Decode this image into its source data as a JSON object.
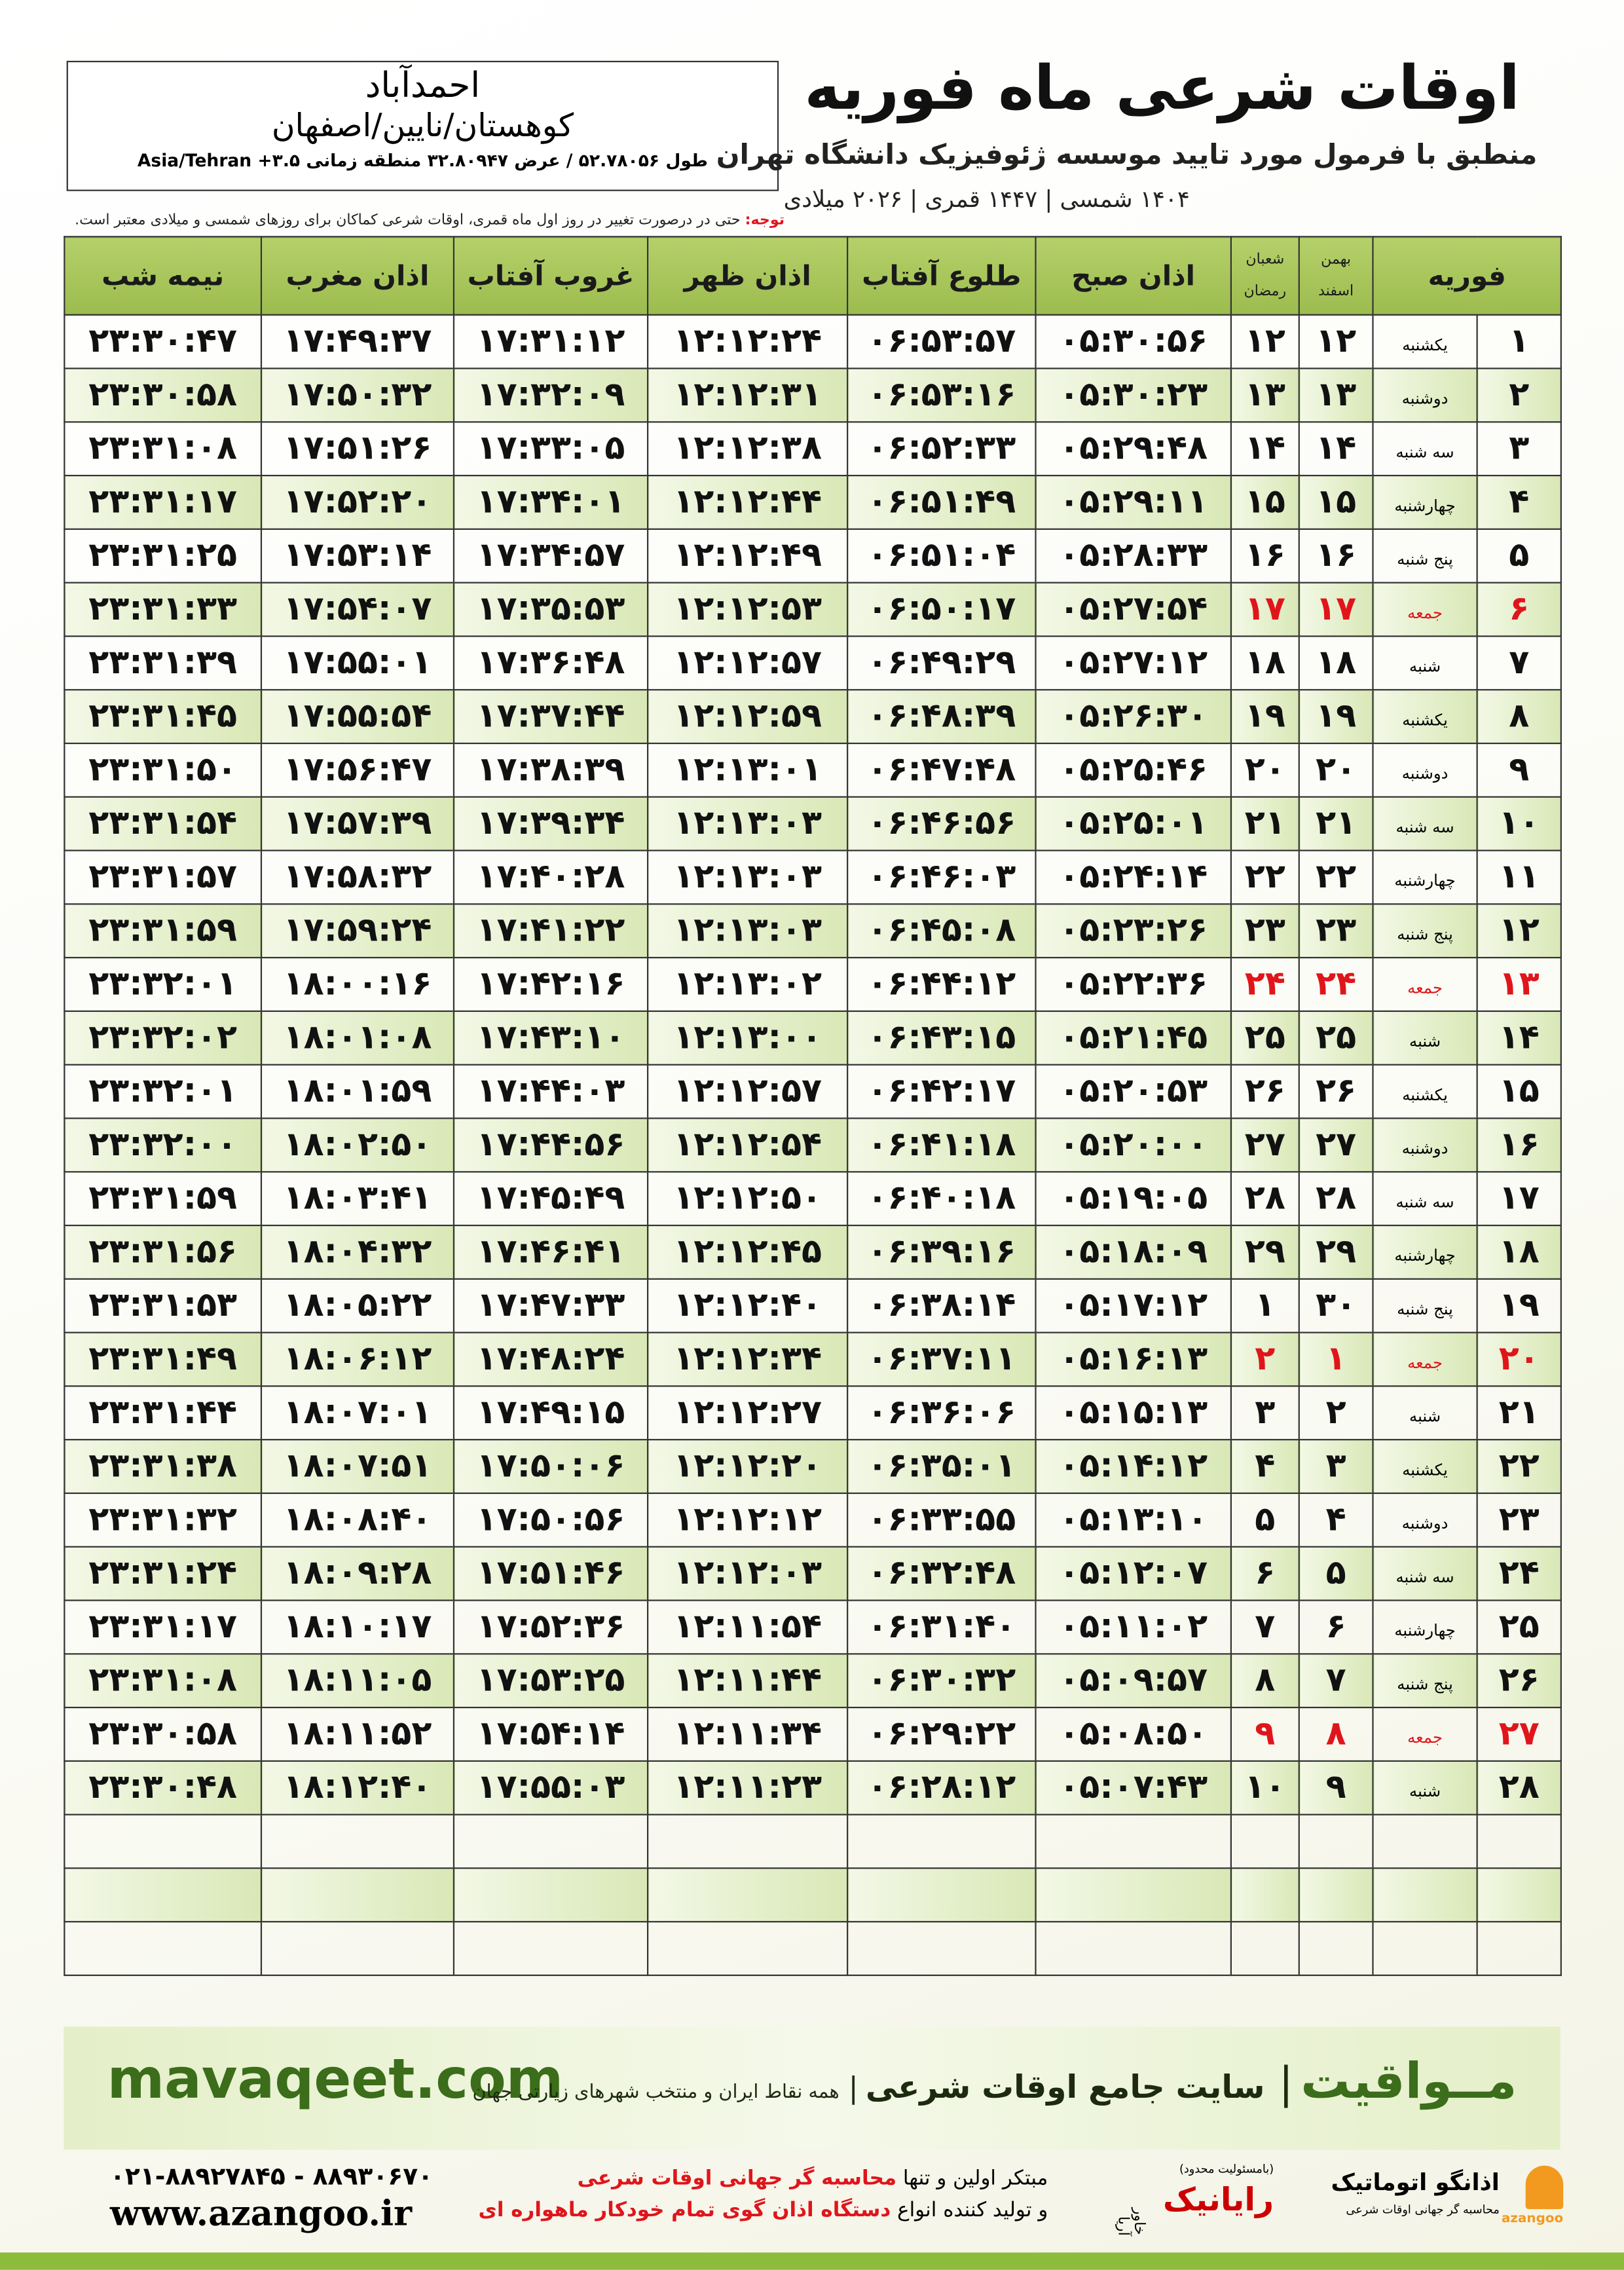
{
  "header": {
    "title": "اوقات شرعی ماه فوریه",
    "subtitle": "منطبق با فرمول مورد تایید موسسه ژئوفیزیک دانشگاه تهران",
    "dates": "۱۴۰۴ شمسی | ۱۴۴۷ قمری | ۲۰۲۶ میلادی"
  },
  "location": {
    "city": "احمدآباد",
    "region": "کوهستان/نایین/اصفهان",
    "coords": "طول ۵۲.۷۸۰۵۶ / عرض ۳۲.۸۰۹۴۷ منطقه زمانی ۳.۵+ Asia/Tehran"
  },
  "note": {
    "label": "توجه:",
    "text": "حتی در درصورت تغییر در روز اول ماه قمری، اوقات شرعی کماکان برای روزهای شمسی و میلادی معتبر است."
  },
  "table": {
    "columns": [
      "فوریه",
      [
        "بهمن",
        "اسفند"
      ],
      [
        "شعبان",
        "رمضان"
      ],
      "اذان صبح",
      "طلوع آفتاب",
      "اذان ظهر",
      "غروب آفتاب",
      "اذان مغرب",
      "نیمه شب"
    ],
    "rows": [
      [
        "۱",
        "یکشنبه",
        "۱۲",
        "۱۲",
        "۰۵:۳۰:۵۶",
        "۰۶:۵۳:۵۷",
        "۱۲:۱۲:۲۴",
        "۱۷:۳۱:۱۲",
        "۱۷:۴۹:۳۷",
        "۲۳:۳۰:۴۷"
      ],
      [
        "۲",
        "دوشنبه",
        "۱۳",
        "۱۳",
        "۰۵:۳۰:۲۳",
        "۰۶:۵۳:۱۶",
        "۱۲:۱۲:۳۱",
        "۱۷:۳۲:۰۹",
        "۱۷:۵۰:۳۲",
        "۲۳:۳۰:۵۸"
      ],
      [
        "۳",
        "سه شنبه",
        "۱۴",
        "۱۴",
        "۰۵:۲۹:۴۸",
        "۰۶:۵۲:۳۳",
        "۱۲:۱۲:۳۸",
        "۱۷:۳۳:۰۵",
        "۱۷:۵۱:۲۶",
        "۲۳:۳۱:۰۸"
      ],
      [
        "۴",
        "چهارشنبه",
        "۱۵",
        "۱۵",
        "۰۵:۲۹:۱۱",
        "۰۶:۵۱:۴۹",
        "۱۲:۱۲:۴۴",
        "۱۷:۳۴:۰۱",
        "۱۷:۵۲:۲۰",
        "۲۳:۳۱:۱۷"
      ],
      [
        "۵",
        "پنج شنبه",
        "۱۶",
        "۱۶",
        "۰۵:۲۸:۳۳",
        "۰۶:۵۱:۰۴",
        "۱۲:۱۲:۴۹",
        "۱۷:۳۴:۵۷",
        "۱۷:۵۳:۱۴",
        "۲۳:۳۱:۲۵"
      ],
      [
        "۶",
        "جمعه",
        "۱۷",
        "۱۷",
        "۰۵:۲۷:۵۴",
        "۰۶:۵۰:۱۷",
        "۱۲:۱۲:۵۳",
        "۱۷:۳۵:۵۳",
        "۱۷:۵۴:۰۷",
        "۲۳:۳۱:۳۳"
      ],
      [
        "۷",
        "شنبه",
        "۱۸",
        "۱۸",
        "۰۵:۲۷:۱۲",
        "۰۶:۴۹:۲۹",
        "۱۲:۱۲:۵۷",
        "۱۷:۳۶:۴۸",
        "۱۷:۵۵:۰۱",
        "۲۳:۳۱:۳۹"
      ],
      [
        "۸",
        "یکشنبه",
        "۱۹",
        "۱۹",
        "۰۵:۲۶:۳۰",
        "۰۶:۴۸:۳۹",
        "۱۲:۱۲:۵۹",
        "۱۷:۳۷:۴۴",
        "۱۷:۵۵:۵۴",
        "۲۳:۳۱:۴۵"
      ],
      [
        "۹",
        "دوشنبه",
        "۲۰",
        "۲۰",
        "۰۵:۲۵:۴۶",
        "۰۶:۴۷:۴۸",
        "۱۲:۱۳:۰۱",
        "۱۷:۳۸:۳۹",
        "۱۷:۵۶:۴۷",
        "۲۳:۳۱:۵۰"
      ],
      [
        "۱۰",
        "سه شنبه",
        "۲۱",
        "۲۱",
        "۰۵:۲۵:۰۱",
        "۰۶:۴۶:۵۶",
        "۱۲:۱۳:۰۳",
        "۱۷:۳۹:۳۴",
        "۱۷:۵۷:۳۹",
        "۲۳:۳۱:۵۴"
      ],
      [
        "۱۱",
        "چهارشنبه",
        "۲۲",
        "۲۲",
        "۰۵:۲۴:۱۴",
        "۰۶:۴۶:۰۳",
        "۱۲:۱۳:۰۳",
        "۱۷:۴۰:۲۸",
        "۱۷:۵۸:۳۲",
        "۲۳:۳۱:۵۷"
      ],
      [
        "۱۲",
        "پنج شنبه",
        "۲۳",
        "۲۳",
        "۰۵:۲۳:۲۶",
        "۰۶:۴۵:۰۸",
        "۱۲:۱۳:۰۳",
        "۱۷:۴۱:۲۲",
        "۱۷:۵۹:۲۴",
        "۲۳:۳۱:۵۹"
      ],
      [
        "۱۳",
        "جمعه",
        "۲۴",
        "۲۴",
        "۰۵:۲۲:۳۶",
        "۰۶:۴۴:۱۲",
        "۱۲:۱۳:۰۲",
        "۱۷:۴۲:۱۶",
        "۱۸:۰۰:۱۶",
        "۲۳:۳۲:۰۱"
      ],
      [
        "۱۴",
        "شنبه",
        "۲۵",
        "۲۵",
        "۰۵:۲۱:۴۵",
        "۰۶:۴۳:۱۵",
        "۱۲:۱۳:۰۰",
        "۱۷:۴۳:۱۰",
        "۱۸:۰۱:۰۸",
        "۲۳:۳۲:۰۲"
      ],
      [
        "۱۵",
        "یکشنبه",
        "۲۶",
        "۲۶",
        "۰۵:۲۰:۵۳",
        "۰۶:۴۲:۱۷",
        "۱۲:۱۲:۵۷",
        "۱۷:۴۴:۰۳",
        "۱۸:۰۱:۵۹",
        "۲۳:۳۲:۰۱"
      ],
      [
        "۱۶",
        "دوشنبه",
        "۲۷",
        "۲۷",
        "۰۵:۲۰:۰۰",
        "۰۶:۴۱:۱۸",
        "۱۲:۱۲:۵۴",
        "۱۷:۴۴:۵۶",
        "۱۸:۰۲:۵۰",
        "۲۳:۳۲:۰۰"
      ],
      [
        "۱۷",
        "سه شنبه",
        "۲۸",
        "۲۸",
        "۰۵:۱۹:۰۵",
        "۰۶:۴۰:۱۸",
        "۱۲:۱۲:۵۰",
        "۱۷:۴۵:۴۹",
        "۱۸:۰۳:۴۱",
        "۲۳:۳۱:۵۹"
      ],
      [
        "۱۸",
        "چهارشنبه",
        "۲۹",
        "۲۹",
        "۰۵:۱۸:۰۹",
        "۰۶:۳۹:۱۶",
        "۱۲:۱۲:۴۵",
        "۱۷:۴۶:۴۱",
        "۱۸:۰۴:۳۲",
        "۲۳:۳۱:۵۶"
      ],
      [
        "۱۹",
        "پنج شنبه",
        "۳۰",
        "۱",
        "۰۵:۱۷:۱۲",
        "۰۶:۳۸:۱۴",
        "۱۲:۱۲:۴۰",
        "۱۷:۴۷:۳۳",
        "۱۸:۰۵:۲۲",
        "۲۳:۳۱:۵۳"
      ],
      [
        "۲۰",
        "جمعه",
        "۱",
        "۲",
        "۰۵:۱۶:۱۳",
        "۰۶:۳۷:۱۱",
        "۱۲:۱۲:۳۴",
        "۱۷:۴۸:۲۴",
        "۱۸:۰۶:۱۲",
        "۲۳:۳۱:۴۹"
      ],
      [
        "۲۱",
        "شنبه",
        "۲",
        "۳",
        "۰۵:۱۵:۱۳",
        "۰۶:۳۶:۰۶",
        "۱۲:۱۲:۲۷",
        "۱۷:۴۹:۱۵",
        "۱۸:۰۷:۰۱",
        "۲۳:۳۱:۴۴"
      ],
      [
        "۲۲",
        "یکشنبه",
        "۳",
        "۴",
        "۰۵:۱۴:۱۲",
        "۰۶:۳۵:۰۱",
        "۱۲:۱۲:۲۰",
        "۱۷:۵۰:۰۶",
        "۱۸:۰۷:۵۱",
        "۲۳:۳۱:۳۸"
      ],
      [
        "۲۳",
        "دوشنبه",
        "۴",
        "۵",
        "۰۵:۱۳:۱۰",
        "۰۶:۳۳:۵۵",
        "۱۲:۱۲:۱۲",
        "۱۷:۵۰:۵۶",
        "۱۸:۰۸:۴۰",
        "۲۳:۳۱:۳۲"
      ],
      [
        "۲۴",
        "سه شنبه",
        "۵",
        "۶",
        "۰۵:۱۲:۰۷",
        "۰۶:۳۲:۴۸",
        "۱۲:۱۲:۰۳",
        "۱۷:۵۱:۴۶",
        "۱۸:۰۹:۲۸",
        "۲۳:۳۱:۲۴"
      ],
      [
        "۲۵",
        "چهارشنبه",
        "۶",
        "۷",
        "۰۵:۱۱:۰۲",
        "۰۶:۳۱:۴۰",
        "۱۲:۱۱:۵۴",
        "۱۷:۵۲:۳۶",
        "۱۸:۱۰:۱۷",
        "۲۳:۳۱:۱۷"
      ],
      [
        "۲۶",
        "پنج شنبه",
        "۷",
        "۸",
        "۰۵:۰۹:۵۷",
        "۰۶:۳۰:۳۲",
        "۱۲:۱۱:۴۴",
        "۱۷:۵۳:۲۵",
        "۱۸:۱۱:۰۵",
        "۲۳:۳۱:۰۸"
      ],
      [
        "۲۷",
        "جمعه",
        "۸",
        "۹",
        "۰۵:۰۸:۵۰",
        "۰۶:۲۹:۲۲",
        "۱۲:۱۱:۳۴",
        "۱۷:۵۴:۱۴",
        "۱۸:۱۱:۵۲",
        "۲۳:۳۰:۵۸"
      ],
      [
        "۲۸",
        "شنبه",
        "۹",
        "۱۰",
        "۰۵:۰۷:۴۳",
        "۰۶:۲۸:۱۲",
        "۱۲:۱۱:۲۳",
        "۱۷:۵۵:۰۳",
        "۱۸:۱۲:۴۰",
        "۲۳:۳۰:۴۸"
      ]
    ]
  },
  "footer": {
    "site": "mavaqeet.com",
    "brand": "مــواقیت",
    "slogan": "سایت جامع اوقات شرعی",
    "tagline": "همه نقاط ایران و منتخب شهرهای زیارتی جهان"
  },
  "contact": {
    "phone": "۰۲۱-۸۸۹۲۷۸۴۵ - ۸۸۹۳۰۶۷۰",
    "web": "www.azangoo.ir"
  },
  "promo": {
    "line1": [
      "مبتکر اولین و تنها",
      "محاسبه گر جهانی اوقات شرعی"
    ],
    "line2": [
      "و تولید کننده انواع",
      "دستگاه اذان گوی تمام خودکار ماهواره ای"
    ]
  },
  "logos": {
    "rayanik": {
      "name": "رایانیک",
      "partner": "خاور آریا",
      "legal": "(بامسئولیت محدود)"
    },
    "azangoo": {
      "name": "اذانگو اتوماتیک",
      "caption": "محاسبه گر جهانی اوقات شرعی",
      "latin": "azangoo"
    }
  }
}
